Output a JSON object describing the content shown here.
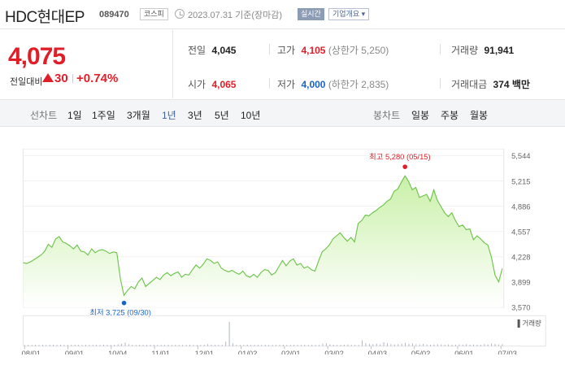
{
  "header": {
    "title": "HDC현대EP",
    "code": "089470",
    "market": "코스피",
    "date": "2023.07.31  기준(장마감)",
    "realtime": "실시간",
    "overview": "기업개요"
  },
  "price": {
    "current": "4,075",
    "change_label": "전일대비",
    "change": "30",
    "change_rate": "+0.74%"
  },
  "quote": {
    "prev_close": {
      "label": "전일",
      "value": "4,045"
    },
    "high": {
      "label": "고가",
      "value": "4,105",
      "sub": "(상한가 5,250)"
    },
    "volume": {
      "label": "거래량",
      "value": "91,941"
    },
    "open": {
      "label": "시가",
      "value": "4,065"
    },
    "low": {
      "label": "저가",
      "value": "4,000",
      "sub": "(하한가 2,835)"
    },
    "amount": {
      "label": "거래대금",
      "value": "374",
      "unit": "백만"
    }
  },
  "tabs": {
    "line_label": "선차트",
    "line_periods": [
      "1일",
      "1주일",
      "3개월",
      "1년",
      "3년",
      "5년",
      "10년"
    ],
    "active": "1년",
    "candle_label": "봉차트",
    "candle_periods": [
      "일봉",
      "주봉",
      "월봉"
    ]
  },
  "chart_data": {
    "type": "area",
    "yticks": [
      "5,544",
      "5,215",
      "4,886",
      "4,557",
      "4,228",
      "3,899",
      "3,570"
    ],
    "ylim": [
      3570,
      5544
    ],
    "xticks": [
      "08/01",
      "09/01",
      "10/04",
      "11/01",
      "12/01",
      "01/02",
      "02/01",
      "03/02",
      "04/03",
      "05/02",
      "06/01",
      "07/03"
    ],
    "high_annotation": "최고 5,280 (05/15)",
    "low_annotation": "최저 3,725 (09/30)",
    "high_value": 5280,
    "low_value": 3725,
    "volume_label": "거래량",
    "colors": {
      "line": "#6cc34a",
      "fill_top": "#c9f0a8",
      "fill_bottom": "#ffffff",
      "high_dot": "#e01e28",
      "low_dot": "#1a64c8"
    },
    "series": [
      {
        "values": [
          4150,
          4140,
          4160,
          4190,
          4220,
          4250,
          4300,
          4390,
          4350,
          4460,
          4490,
          4420,
          4400,
          4370,
          4330,
          4380,
          4300,
          4290,
          4250,
          4330,
          4280,
          4310,
          4320,
          4300,
          4270,
          4290,
          4280,
          3940,
          3725,
          3790,
          3840,
          3810,
          3900,
          3950,
          3840,
          3880,
          3920,
          3960,
          3930,
          3990,
          4020,
          3980,
          4010,
          4030,
          3960,
          4000,
          3990,
          4060,
          4120,
          4080,
          4130,
          4200,
          4180,
          4140,
          4160,
          4080,
          4050,
          4030,
          4050,
          4020,
          4000,
          4040,
          3980,
          3960,
          4000,
          3960,
          4020,
          4060,
          4050,
          3990,
          4020,
          4100,
          4180,
          4110,
          4170,
          4200,
          4120,
          4140,
          4080,
          4100,
          4060,
          4040,
          4170,
          4290,
          4330,
          4380,
          4460,
          4500,
          4540,
          4480,
          4430,
          4480,
          4420,
          4660,
          4700,
          4770,
          4760,
          4800,
          4830,
          4870,
          4900,
          4950,
          4980,
          5080,
          5110,
          5200,
          5280,
          5210,
          5100,
          5130,
          5000,
          5020,
          5040,
          4950,
          5100,
          4960,
          4880,
          4800,
          4750,
          4800,
          4700,
          4620,
          4640,
          4580,
          4590,
          4450,
          4500,
          4460,
          4410,
          4380,
          4220,
          3990,
          3900,
          4075
        ]
      }
    ],
    "volume": [
      5,
      5,
      5,
      6,
      5,
      6,
      5,
      6,
      6,
      5,
      6,
      5,
      5,
      5,
      6,
      5,
      5,
      6,
      5,
      5,
      6,
      5,
      6,
      5,
      5,
      6,
      7,
      9,
      15,
      8,
      6,
      5,
      6,
      5,
      5,
      5,
      6,
      5,
      5,
      5,
      6,
      5,
      5,
      5,
      5,
      5,
      6,
      5,
      5,
      5,
      6,
      8,
      6,
      5,
      5,
      5,
      18,
      100,
      12,
      6,
      5,
      5,
      6,
      5,
      5,
      5,
      5,
      6,
      5,
      5,
      5,
      5,
      6,
      5,
      5,
      5,
      5,
      5,
      6,
      5,
      6,
      5,
      5,
      10,
      12,
      7,
      6,
      5,
      5,
      6,
      7,
      5,
      6,
      5,
      24,
      12,
      9,
      8,
      10,
      7,
      16,
      12,
      8,
      7,
      8,
      10,
      14,
      9,
      11,
      8,
      7,
      9,
      7,
      6,
      7,
      8,
      7,
      6,
      7,
      6,
      6,
      7,
      6,
      8,
      6,
      7,
      6,
      6,
      8,
      7,
      10,
      9,
      7,
      8
    ]
  }
}
